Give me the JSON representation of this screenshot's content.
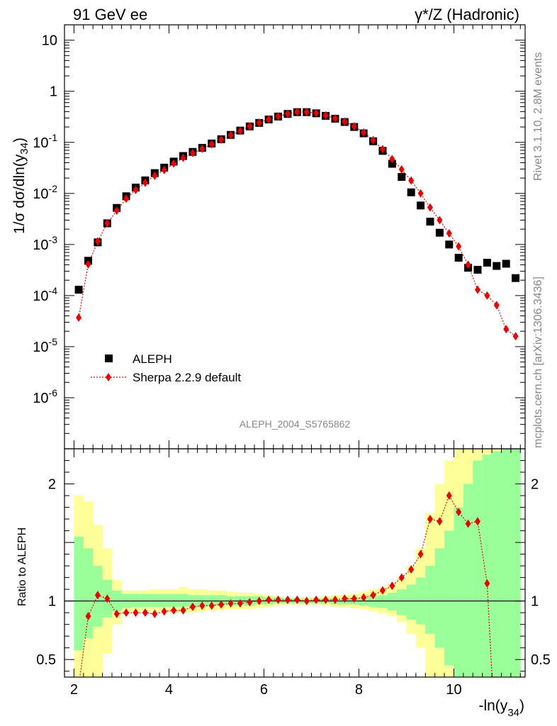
{
  "header": {
    "left": "91 GeV ee",
    "right": "γ*/Z (Hadronic)"
  },
  "side_labels": {
    "top": "Rivet 3.1.10,  2.8M events",
    "bottom": "mcplots.cern.ch [arXiv:1306.3436]"
  },
  "analysis_label": "ALEPH_2004_S5765862",
  "chart_data": [
    {
      "type": "scatter",
      "panel": "main",
      "ylabel": "1/σ  dσ/dln(y34)",
      "yscale": "log",
      "ylim": [
        1e-07,
        20
      ],
      "xlim": [
        1.8,
        11.5
      ],
      "y_tick_labels": [
        "10^-6",
        "10^-5",
        "10^-4",
        "10^-3",
        "10^-2",
        "10^-1",
        "1",
        "10"
      ],
      "legend_position": "bottom-left",
      "series": [
        {
          "name": "ALEPH",
          "color": "#000000",
          "marker": "square",
          "x": [
            2.1,
            2.3,
            2.5,
            2.7,
            2.9,
            3.1,
            3.3,
            3.5,
            3.7,
            3.9,
            4.1,
            4.3,
            4.5,
            4.7,
            4.9,
            5.1,
            5.3,
            5.5,
            5.7,
            5.9,
            6.1,
            6.3,
            6.5,
            6.7,
            6.9,
            7.1,
            7.3,
            7.5,
            7.7,
            7.9,
            8.1,
            8.3,
            8.5,
            8.7,
            8.9,
            9.1,
            9.3,
            9.5,
            9.7,
            9.9,
            10.1,
            10.3,
            10.5,
            10.7,
            10.9,
            11.1,
            11.3
          ],
          "y": [
            0.00013,
            0.00048,
            0.0011,
            0.0026,
            0.0052,
            0.0088,
            0.013,
            0.018,
            0.025,
            0.032,
            0.042,
            0.054,
            0.065,
            0.078,
            0.095,
            0.115,
            0.14,
            0.17,
            0.205,
            0.24,
            0.28,
            0.32,
            0.36,
            0.39,
            0.39,
            0.37,
            0.33,
            0.29,
            0.25,
            0.2,
            0.15,
            0.105,
            0.068,
            0.038,
            0.021,
            0.0105,
            0.0058,
            0.0028,
            0.0017,
            0.001,
            0.00055,
            0.00035,
            0.00032,
            0.00044,
            0.00038,
            0.00042,
            0.00022
          ]
        },
        {
          "name": "Sherpa 2.2.9 default",
          "color": "#ee0000",
          "marker": "diamond",
          "line": "dotted",
          "x": [
            2.1,
            2.3,
            2.5,
            2.7,
            2.9,
            3.1,
            3.3,
            3.5,
            3.7,
            3.9,
            4.1,
            4.3,
            4.5,
            4.7,
            4.9,
            5.1,
            5.3,
            5.5,
            5.7,
            5.9,
            6.1,
            6.3,
            6.5,
            6.7,
            6.9,
            7.1,
            7.3,
            7.5,
            7.7,
            7.9,
            8.1,
            8.3,
            8.5,
            8.7,
            8.9,
            9.1,
            9.3,
            9.5,
            9.7,
            9.9,
            10.1,
            10.3,
            10.5,
            10.7,
            10.9,
            11.1,
            11.3
          ],
          "y": [
            3.7e-05,
            0.00041,
            0.00115,
            0.0026,
            0.0046,
            0.0079,
            0.0117,
            0.0162,
            0.0222,
            0.0286,
            0.0385,
            0.0497,
            0.062,
            0.0746,
            0.0918,
            0.1128,
            0.138,
            0.168,
            0.205,
            0.2425,
            0.283,
            0.322,
            0.362,
            0.395,
            0.392,
            0.376,
            0.337,
            0.294,
            0.255,
            0.205,
            0.156,
            0.11,
            0.0735,
            0.047,
            0.0295,
            0.0179,
            0.01,
            0.0053,
            0.003,
            0.00165,
            0.00092,
            0.0004,
            0.00013,
            0.0001,
            6.5e-05,
            2.2e-05,
            1.6e-05
          ]
        }
      ]
    },
    {
      "type": "line",
      "panel": "ratio",
      "ylabel": "Ratio to ALEPH",
      "xlabel": "-ln(y34)",
      "ylim": [
        0.35,
        2.3
      ],
      "xlim": [
        1.8,
        11.5
      ],
      "y_ticks": [
        0.5,
        1,
        2
      ],
      "x_ticks": [
        2,
        4,
        6,
        8,
        10
      ],
      "band_edges": [
        2.0,
        2.2,
        2.4,
        2.6,
        2.8,
        3.0,
        3.2,
        3.4,
        3.6,
        3.8,
        4.0,
        4.2,
        4.4,
        4.6,
        4.8,
        5.0,
        5.2,
        5.4,
        5.6,
        5.8,
        6.0,
        6.2,
        6.4,
        6.6,
        6.8,
        7.0,
        7.2,
        7.4,
        7.6,
        7.8,
        8.0,
        8.2,
        8.4,
        8.6,
        8.8,
        9.0,
        9.2,
        9.4,
        9.6,
        9.8,
        10.0,
        10.2,
        10.4,
        10.6,
        10.8,
        11.0,
        11.2,
        11.4
      ],
      "band_green_lo": [
        0.58,
        0.68,
        0.78,
        0.86,
        0.91,
        0.94,
        0.95,
        0.95,
        0.95,
        0.95,
        0.95,
        0.95,
        0.95,
        0.95,
        0.96,
        0.96,
        0.96,
        0.96,
        0.96,
        0.97,
        0.97,
        0.98,
        0.98,
        0.98,
        0.98,
        0.98,
        0.98,
        0.97,
        0.97,
        0.97,
        0.96,
        0.95,
        0.94,
        0.92,
        0.88,
        0.84,
        0.8,
        0.72,
        0.6,
        0.45,
        0.35,
        0.35,
        0.35,
        0.35,
        0.35,
        0.35,
        0.35
      ],
      "band_green_hi": [
        1.55,
        1.45,
        1.3,
        1.18,
        1.09,
        1.06,
        1.06,
        1.06,
        1.06,
        1.06,
        1.06,
        1.06,
        1.05,
        1.05,
        1.05,
        1.05,
        1.04,
        1.04,
        1.04,
        1.04,
        1.03,
        1.03,
        1.02,
        1.02,
        1.02,
        1.02,
        1.02,
        1.02,
        1.02,
        1.02,
        1.03,
        1.04,
        1.05,
        1.07,
        1.1,
        1.14,
        1.2,
        1.3,
        1.45,
        1.6,
        1.8,
        2.0,
        2.2,
        2.25,
        2.28,
        2.3,
        2.3
      ],
      "band_yellow_lo": [
        0.35,
        0.35,
        0.35,
        0.55,
        0.8,
        0.9,
        0.91,
        0.91,
        0.91,
        0.91,
        0.9,
        0.9,
        0.9,
        0.91,
        0.92,
        0.92,
        0.93,
        0.93,
        0.93,
        0.94,
        0.95,
        0.96,
        0.97,
        0.97,
        0.97,
        0.97,
        0.96,
        0.95,
        0.95,
        0.94,
        0.93,
        0.91,
        0.89,
        0.87,
        0.82,
        0.72,
        0.6,
        0.35,
        0.35,
        0.35,
        0.35,
        0.35,
        0.35,
        0.35,
        0.35,
        0.35,
        0.35
      ],
      "band_yellow_hi": [
        1.9,
        1.85,
        1.65,
        1.45,
        1.18,
        1.09,
        1.09,
        1.09,
        1.1,
        1.1,
        1.1,
        1.12,
        1.1,
        1.1,
        1.09,
        1.09,
        1.08,
        1.07,
        1.07,
        1.06,
        1.05,
        1.04,
        1.03,
        1.03,
        1.03,
        1.03,
        1.04,
        1.05,
        1.05,
        1.06,
        1.08,
        1.1,
        1.12,
        1.15,
        1.2,
        1.3,
        1.45,
        1.75,
        2.0,
        2.2,
        2.3,
        2.3,
        2.3,
        2.3,
        2.3,
        2.3,
        2.3
      ],
      "reference_line": 1,
      "series": [
        {
          "name": "Sherpa 2.2.9 default",
          "color": "#ee0000",
          "marker": "diamond",
          "line": "dotted",
          "x": [
            2.1,
            2.3,
            2.5,
            2.7,
            2.9,
            3.1,
            3.3,
            3.5,
            3.7,
            3.9,
            4.1,
            4.3,
            4.5,
            4.7,
            4.9,
            5.1,
            5.3,
            5.5,
            5.7,
            5.9,
            6.1,
            6.3,
            6.5,
            6.7,
            6.9,
            7.1,
            7.3,
            7.5,
            7.7,
            7.9,
            8.1,
            8.3,
            8.5,
            8.7,
            8.9,
            9.1,
            9.3,
            9.5,
            9.7,
            9.9,
            10.1,
            10.3,
            10.5,
            10.7
          ],
          "y": [
            0.28,
            0.87,
            1.05,
            1.02,
            0.89,
            0.9,
            0.9,
            0.9,
            0.89,
            0.91,
            0.92,
            0.92,
            0.95,
            0.96,
            0.96,
            0.97,
            0.98,
            0.98,
            0.99,
            1.0,
            1.01,
            1.01,
            1.01,
            1.01,
            1.0,
            1.01,
            1.01,
            1.01,
            1.02,
            1.02,
            1.03,
            1.05,
            1.09,
            1.13,
            1.2,
            1.27,
            1.4,
            1.7,
            1.68,
            1.9,
            1.76,
            1.66,
            1.68,
            1.15
          ]
        }
      ]
    }
  ]
}
